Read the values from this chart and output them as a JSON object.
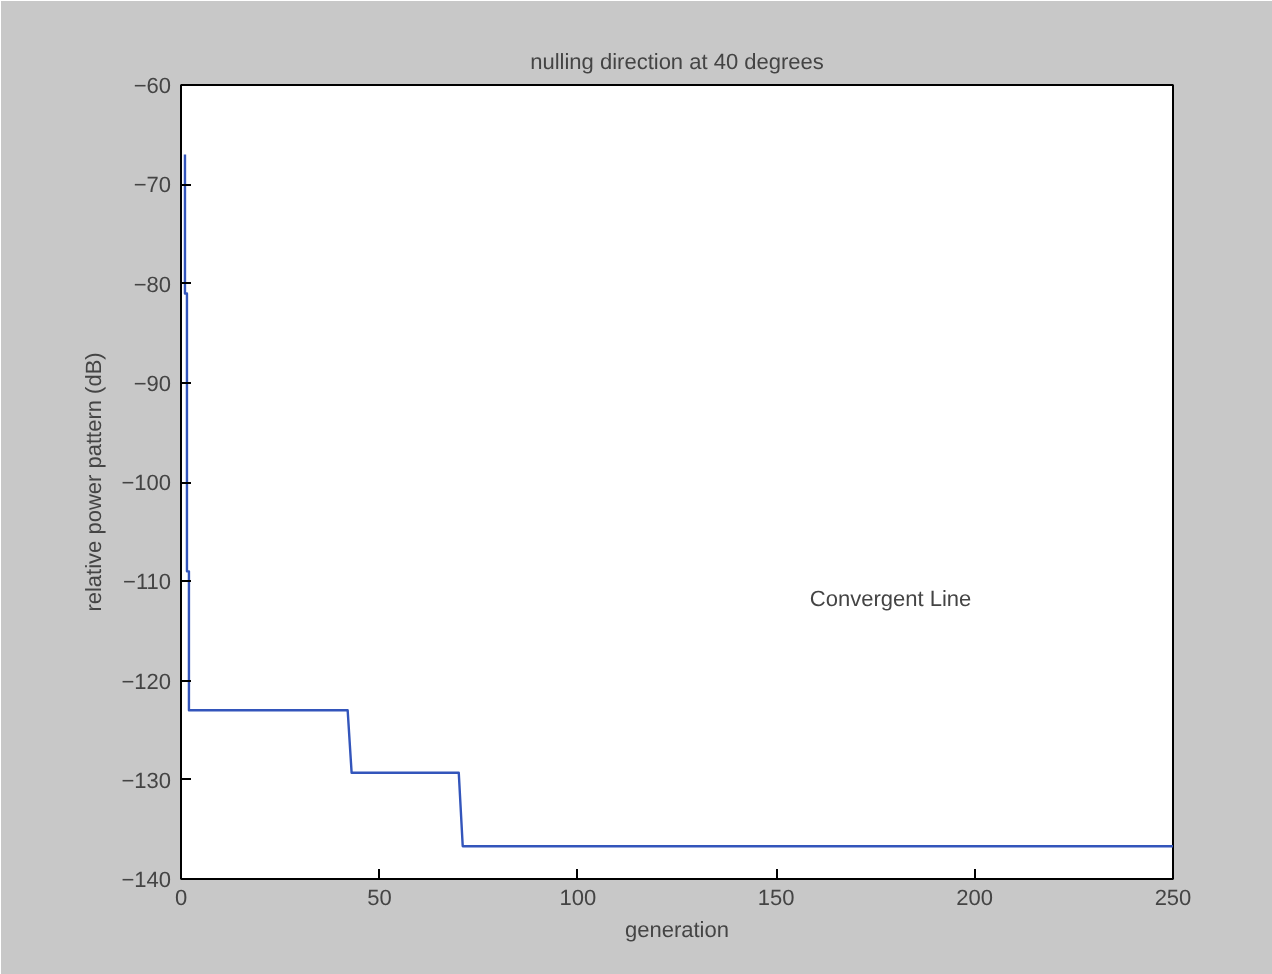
{
  "chart_data": {
    "type": "line",
    "title": "nulling direction at 40 degrees",
    "xlabel": "generation",
    "ylabel": "relative power pattern (dB)",
    "x": [
      1,
      1,
      1.5,
      1.5,
      2,
      2,
      42,
      43,
      70,
      71,
      250
    ],
    "series": [
      {
        "color": "#3355bb",
        "values": [
          -67,
          -81,
          -81,
          -109,
          -109,
          -123,
          -123,
          -129.3,
          -129.3,
          -136.7,
          -136.7
        ]
      }
    ],
    "xlim": [
      0,
      250
    ],
    "xticks": [
      0,
      50,
      100,
      150,
      200,
      250
    ],
    "ylim": [
      -140,
      -60
    ],
    "yticks": [
      -140,
      -130,
      -120,
      -110,
      -100,
      -90,
      -80,
      -70,
      -60
    ],
    "grid": false,
    "marker": "none",
    "line_style": "solid",
    "annotations": [
      "Convergent   Line"
    ]
  }
}
